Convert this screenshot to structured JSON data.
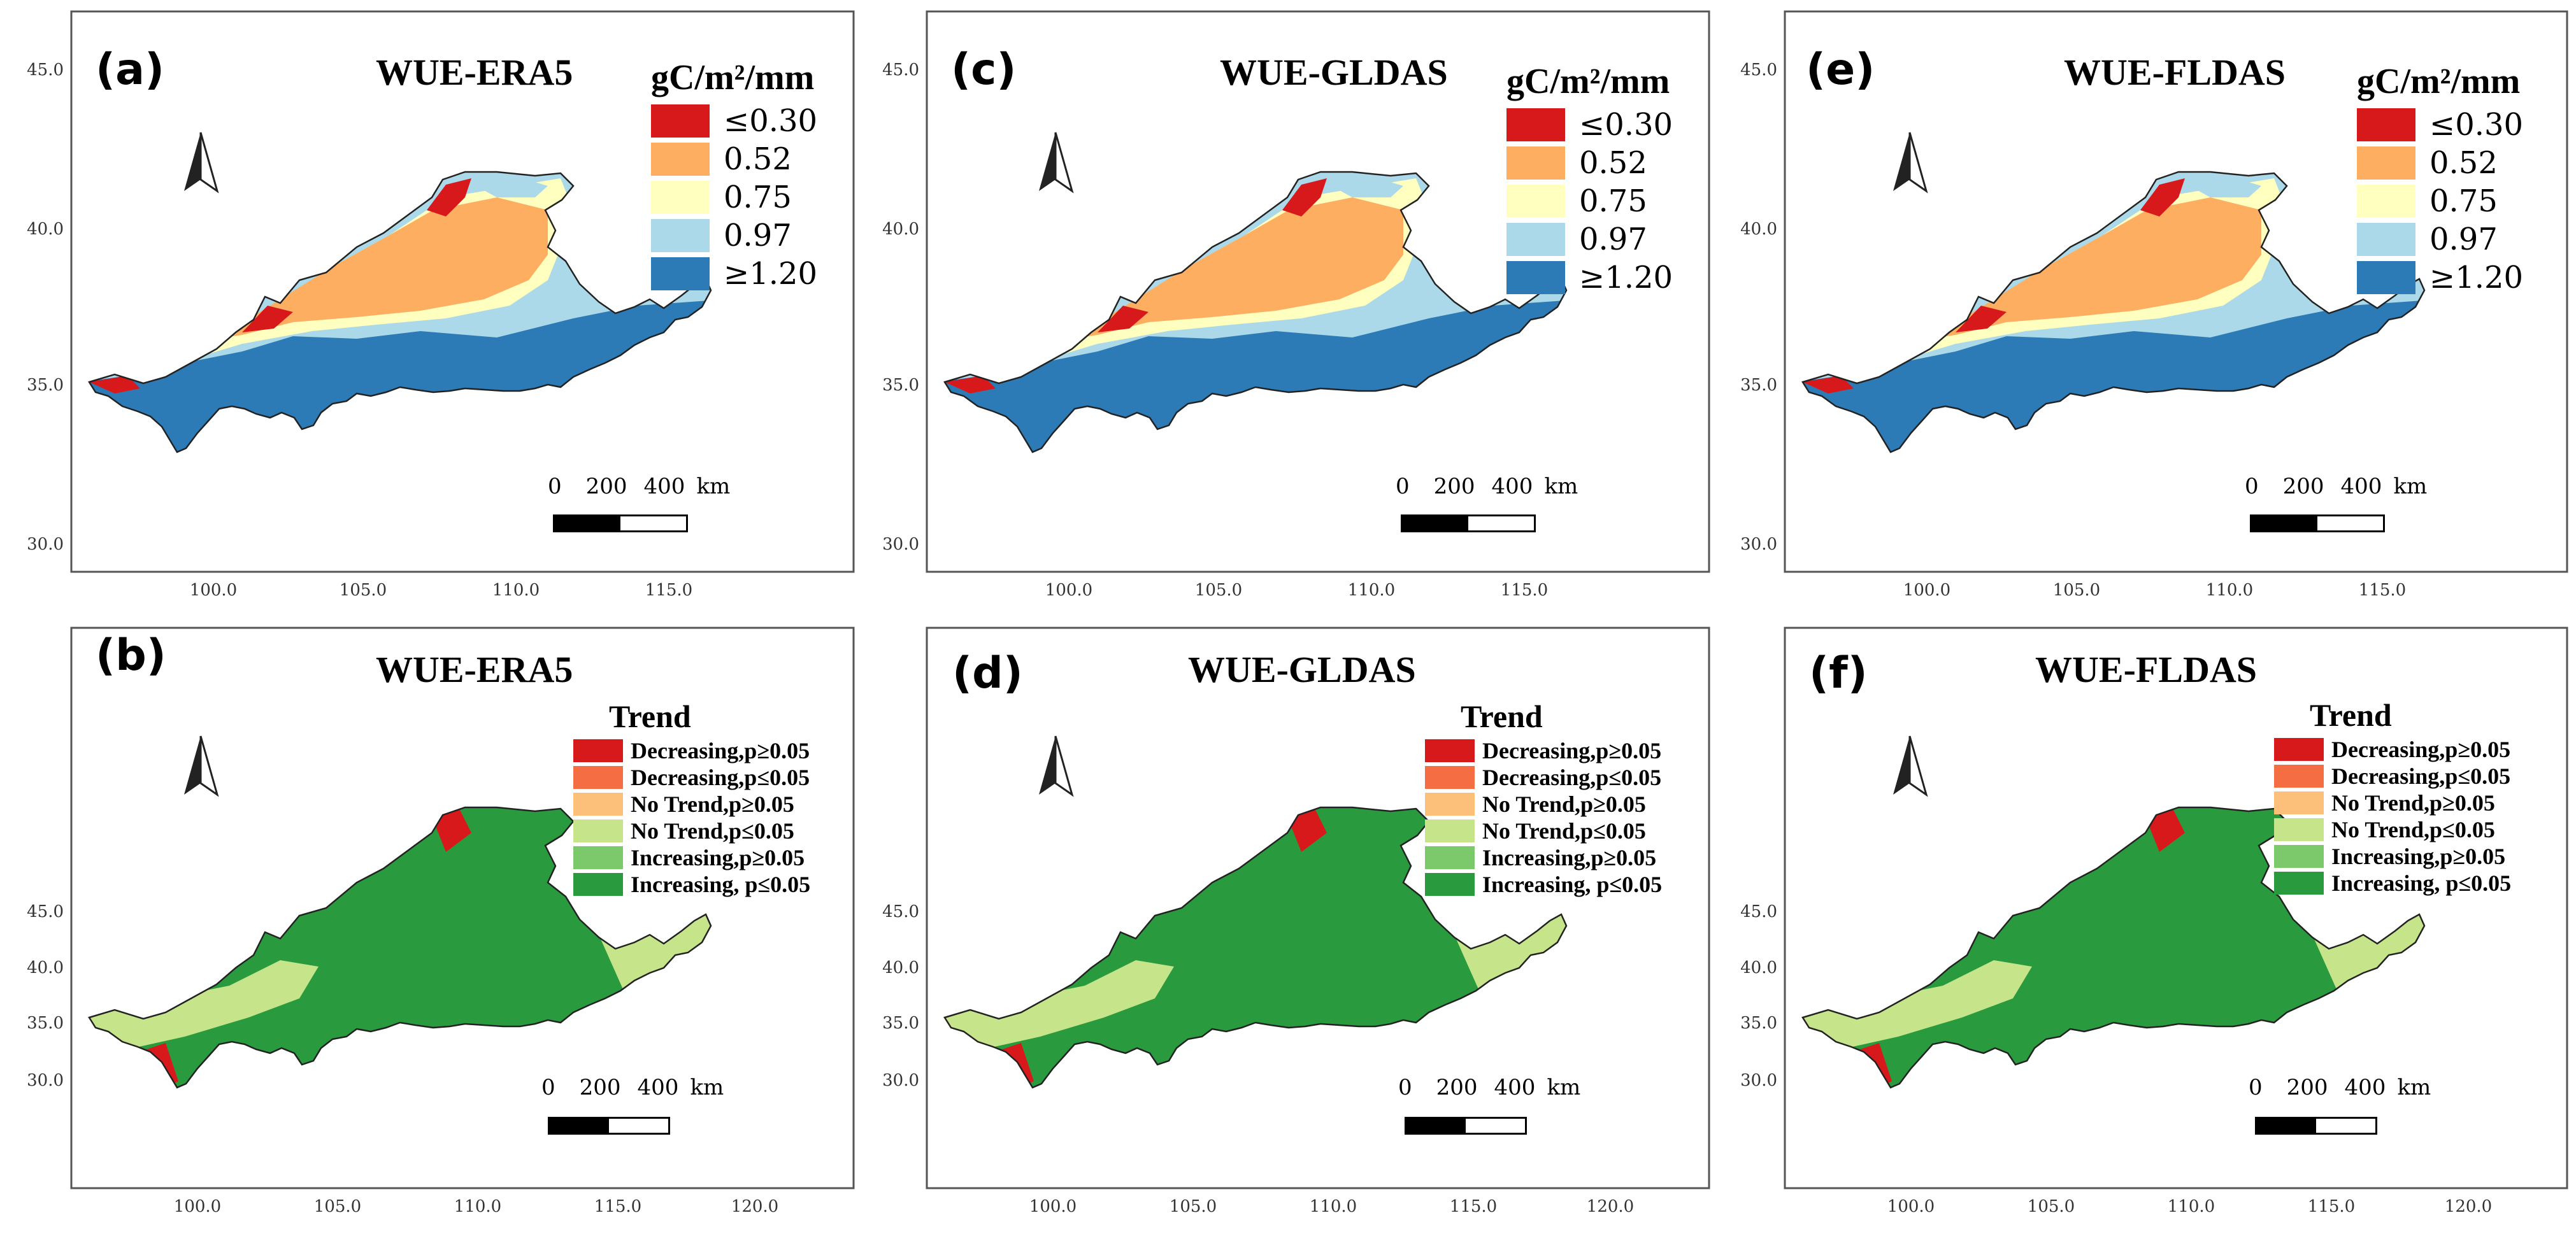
{
  "panels": [
    {
      "id": "a",
      "letter": "(a)",
      "title": "WUE-ERA5",
      "type": "wue",
      "unit": "gC/m²/mm",
      "xticks": [
        "100.0",
        "105.0",
        "110.0",
        "115.0"
      ],
      "yticks": [
        "45.0",
        "40.0",
        "35.0",
        "30.0"
      ]
    },
    {
      "id": "c",
      "letter": "(c)",
      "title": "WUE-GLDAS",
      "type": "wue",
      "unit": "gC/m²/mm",
      "xticks": [
        "100.0",
        "105.0",
        "110.0",
        "115.0"
      ],
      "yticks": [
        "45.0",
        "40.0",
        "35.0",
        "30.0"
      ]
    },
    {
      "id": "e",
      "letter": "(e)",
      "title": "WUE-FLDAS",
      "type": "wue",
      "unit": "gC/m²/mm",
      "xticks": [
        "100.0",
        "105.0",
        "110.0",
        "115.0"
      ],
      "yticks": [
        "45.0",
        "40.0",
        "35.0",
        "30.0"
      ]
    },
    {
      "id": "b",
      "letter": "(b)",
      "title": "WUE-ERA5",
      "type": "trend",
      "unit": "",
      "xticks": [
        "100.0",
        "105.0",
        "110.0",
        "115.0",
        "120.0"
      ],
      "yticks": [
        "45.0",
        "40.0",
        "35.0",
        "30.0"
      ]
    },
    {
      "id": "d",
      "letter": "(d)",
      "title": "WUE-GLDAS",
      "type": "trend",
      "unit": "",
      "xticks": [
        "100.0",
        "105.0",
        "110.0",
        "115.0",
        "120.0"
      ],
      "yticks": [
        "45.0",
        "40.0",
        "35.0",
        "30.0"
      ]
    },
    {
      "id": "f",
      "letter": "(f)",
      "title": "WUE-FLDAS",
      "type": "trend",
      "unit": "",
      "xticks": [
        "100.0",
        "105.0",
        "110.0",
        "115.0",
        "120.0"
      ],
      "yticks": [
        "45.0",
        "40.0",
        "35.0",
        "30.0"
      ]
    }
  ],
  "wue_legend": {
    "title": "gC/m²/mm",
    "items": [
      {
        "label": "≤0.30",
        "color": "#d7191c"
      },
      {
        "label": "0.52",
        "color": "#fdae61"
      },
      {
        "label": "0.75",
        "color": "#ffffbf"
      },
      {
        "label": "0.97",
        "color": "#abd9e9"
      },
      {
        "label": "≥1.20",
        "color": "#2c7bb6"
      }
    ]
  },
  "trend_legend": {
    "title": "Trend",
    "items": [
      {
        "label": "Decreasing,p≥0.05",
        "color": "#d7191c"
      },
      {
        "label": "Decreasing,p≤0.05",
        "color": "#f46d43"
      },
      {
        "label": "No Trend,p≥0.05",
        "color": "#fdc07a"
      },
      {
        "label": "No Trend,p≤0.05",
        "color": "#c6e58b"
      },
      {
        "label": "Increasing,p≥0.05",
        "color": "#7bc96a"
      },
      {
        "label": "Increasing, p≤0.05",
        "color": "#2a9a3e"
      }
    ]
  },
  "scale": {
    "labels": [
      "0",
      "200",
      "400",
      "km"
    ]
  },
  "colors": {
    "frame": "#555555",
    "outline": "#222222"
  }
}
